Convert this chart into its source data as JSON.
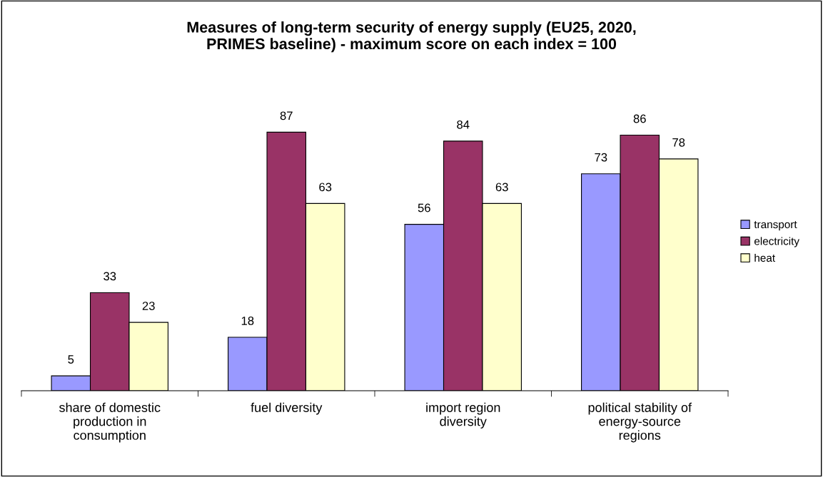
{
  "chart_data": {
    "type": "bar",
    "title": "Measures of long-term security of energy supply (EU25, 2020,\nPRIMES baseline) - maximum score on each index = 100",
    "categories": [
      "share of domestic\nproduction in\nconsumption",
      "fuel diversity",
      "import region\ndiversity",
      "political stability of\nenergy-source\nregions"
    ],
    "series": [
      {
        "name": "transport",
        "color": "#9999ff",
        "values": [
          5,
          18,
          56,
          73
        ]
      },
      {
        "name": "electricity",
        "color": "#993366",
        "values": [
          33,
          87,
          84,
          86
        ]
      },
      {
        "name": "heat",
        "color": "#ffffcc",
        "values": [
          23,
          63,
          63,
          78
        ]
      }
    ],
    "data_labels": true,
    "legend": "right",
    "grid": false
  }
}
